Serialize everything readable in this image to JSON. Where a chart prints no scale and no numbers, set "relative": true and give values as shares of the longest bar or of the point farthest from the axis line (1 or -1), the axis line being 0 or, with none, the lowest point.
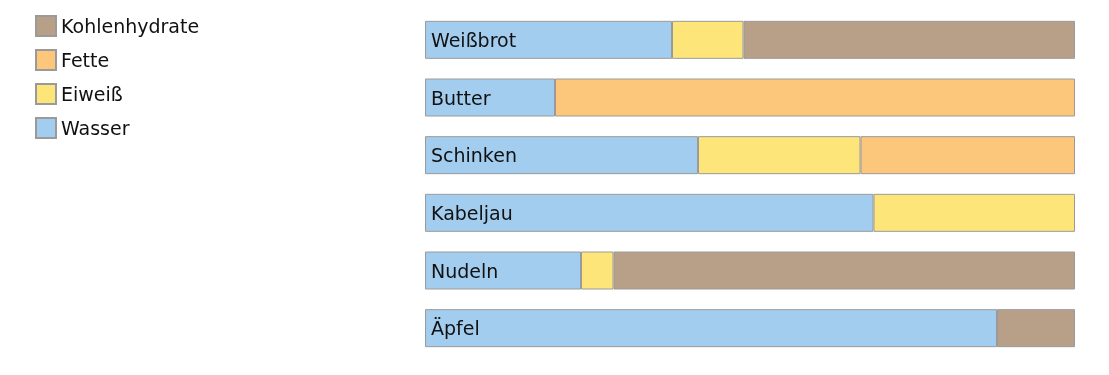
{
  "chart_data": {
    "type": "bar",
    "orientation": "horizontal",
    "stacked": true,
    "relative": true,
    "legend": "top left",
    "categories": [
      "Weißbrot",
      "Butter",
      "Schinken",
      "Kabeljau",
      "Nudeln",
      "Äpfel"
    ],
    "series": [
      {
        "name": "Wasser",
        "color": "#a3cdef",
        "values": [
          0.38,
          0.2,
          0.42,
          0.69,
          0.24,
          0.88
        ]
      },
      {
        "name": "Eiweiß",
        "color": "#fde57a",
        "values": [
          0.11,
          null,
          0.25,
          0.31,
          0.05,
          null
        ]
      },
      {
        "name": "Fette",
        "color": "#fcc77a",
        "values": [
          null,
          0.8,
          0.33,
          null,
          null,
          null
        ]
      },
      {
        "name": "Kohlenhydrate",
        "color": "#b8a088",
        "values": [
          0.51,
          null,
          null,
          null,
          0.71,
          0.12
        ]
      }
    ]
  }
}
